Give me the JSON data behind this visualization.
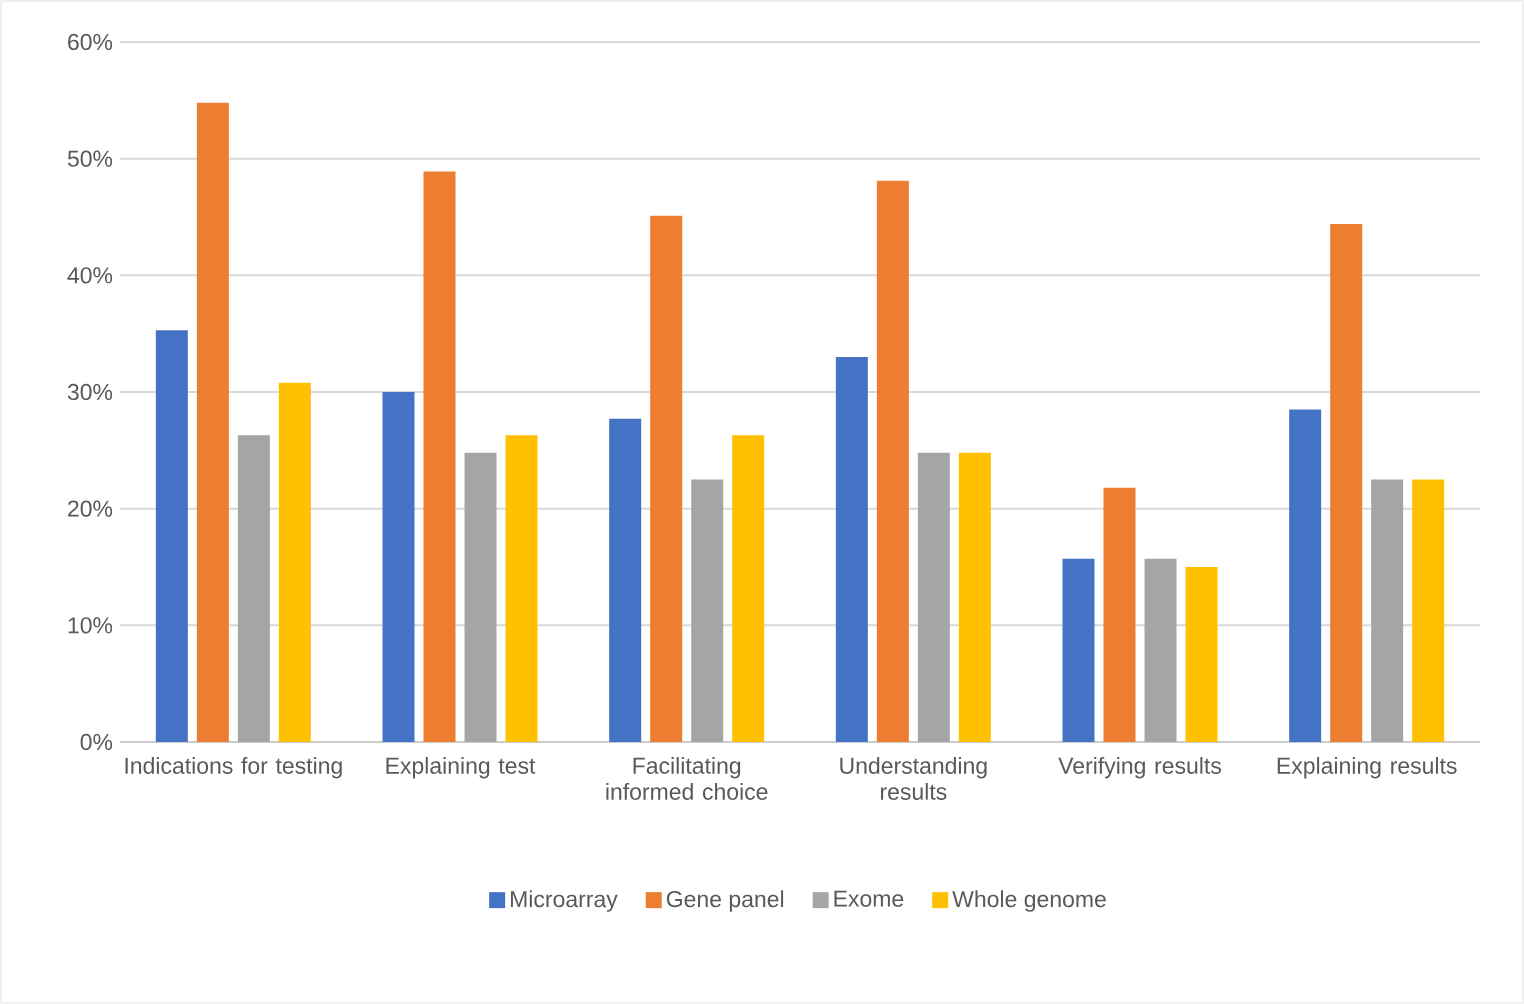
{
  "chart_data": {
    "type": "bar",
    "categories": [
      "Indications for testing",
      "Explaining test",
      "Facilitating informed choice",
      "Understanding results",
      "Verifying results",
      "Explaining results"
    ],
    "series": [
      {
        "name": "Microarray",
        "color": "#4472c4",
        "values": [
          35.3,
          30.0,
          27.7,
          33.0,
          15.7,
          28.5
        ]
      },
      {
        "name": "Gene panel",
        "color": "#ed7d31",
        "values": [
          54.8,
          48.9,
          45.1,
          48.1,
          21.8,
          44.4
        ]
      },
      {
        "name": "Exome",
        "color": "#a5a5a5",
        "values": [
          26.3,
          24.8,
          22.5,
          24.8,
          15.7,
          22.5
        ]
      },
      {
        "name": "Whole genome",
        "color": "#ffc000",
        "values": [
          30.8,
          26.3,
          26.3,
          24.8,
          15.0,
          22.5
        ]
      }
    ],
    "ylim": [
      0,
      60
    ],
    "yticks": [
      {
        "value": 0,
        "label": "0%"
      },
      {
        "value": 10,
        "label": "10%"
      },
      {
        "value": 20,
        "label": "20%"
      },
      {
        "value": 30,
        "label": "30%"
      },
      {
        "value": 40,
        "label": "40%"
      },
      {
        "value": 50,
        "label": "50%"
      },
      {
        "value": 60,
        "label": "60%"
      }
    ],
    "grid": "y",
    "legend": "bottom"
  }
}
